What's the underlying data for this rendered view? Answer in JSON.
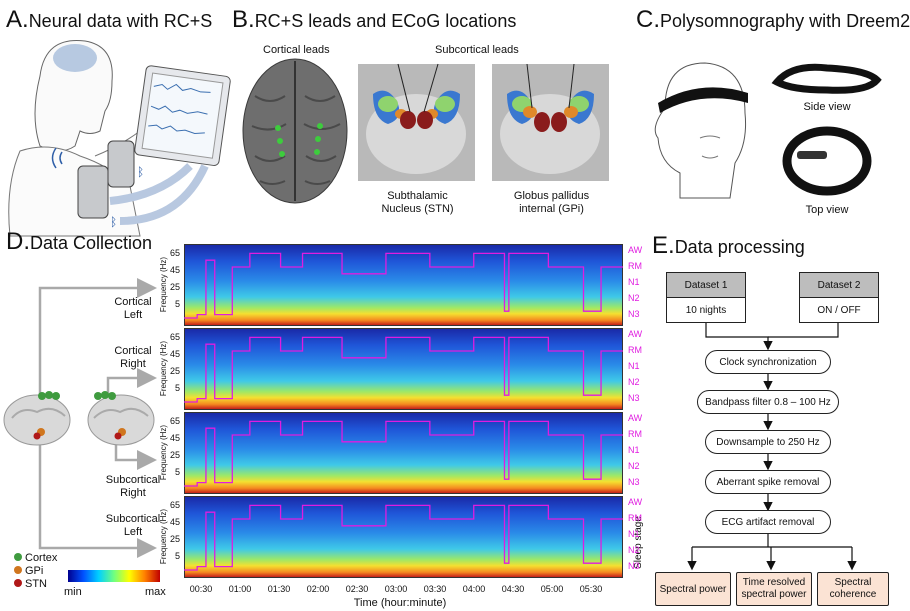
{
  "panelA": {
    "letter": "A.",
    "title": "Neural data with RC+S"
  },
  "panelB": {
    "letter": "B.",
    "title": "RC+S leads and ECoG locations",
    "cortical_label": "Cortical leads",
    "subcortical_label": "Subcortical leads",
    "stn_caption": "Subthalamic\nNucleus (STN)",
    "gpi_caption": "Globus pallidus\ninternal (GPi)"
  },
  "panelC": {
    "letter": "C.",
    "title": "Polysomnography with Dreem2",
    "side_view": "Side view",
    "top_view": "Top view"
  },
  "panelD": {
    "letter": "D.",
    "title": "Data Collection",
    "rows": [
      {
        "label": "Cortical\nLeft"
      },
      {
        "label": "Cortical\nRight"
      },
      {
        "label": "Subcortical\nRight"
      },
      {
        "label": "Subcortical\nLeft"
      }
    ],
    "freq_axis_label": "Frequency (Hz)",
    "freq_ticks": [
      "65",
      "45",
      "25",
      "5"
    ],
    "stage_labels": [
      "AW",
      "RM",
      "N1",
      "N2",
      "N3"
    ],
    "sleep_stage_label": "Sleep stage",
    "time_ticks": [
      "00:30",
      "01:00",
      "01:30",
      "02:00",
      "02:30",
      "03:00",
      "03:30",
      "04:00",
      "04:30",
      "05:00",
      "05:30"
    ],
    "time_axis_label": "Time (hour:minute)",
    "legend": {
      "cortex": "Cortex",
      "gpi": "GPi",
      "stn": "STN"
    },
    "colorbar": {
      "min": "min",
      "max": "max"
    },
    "colors": {
      "cortex": "#3f9b3f",
      "gpi": "#d0761e",
      "stn": "#b01818",
      "hypnogram": "#e01ce0"
    }
  },
  "panelE": {
    "letter": "E.",
    "title": "Data processing",
    "dataset1": {
      "name": "Dataset 1",
      "desc": "10 nights"
    },
    "dataset2": {
      "name": "Dataset 2",
      "desc": "ON / OFF"
    },
    "steps": [
      "Clock synchronization",
      "Bandpass filter 0.8 – 100 Hz",
      "Downsample to 250 Hz",
      "Aberrant spike removal",
      "ECG artifact removal"
    ],
    "outputs": [
      "Spectral power",
      "Time resolved\nspectral power",
      "Spectral\ncoherence"
    ]
  }
}
